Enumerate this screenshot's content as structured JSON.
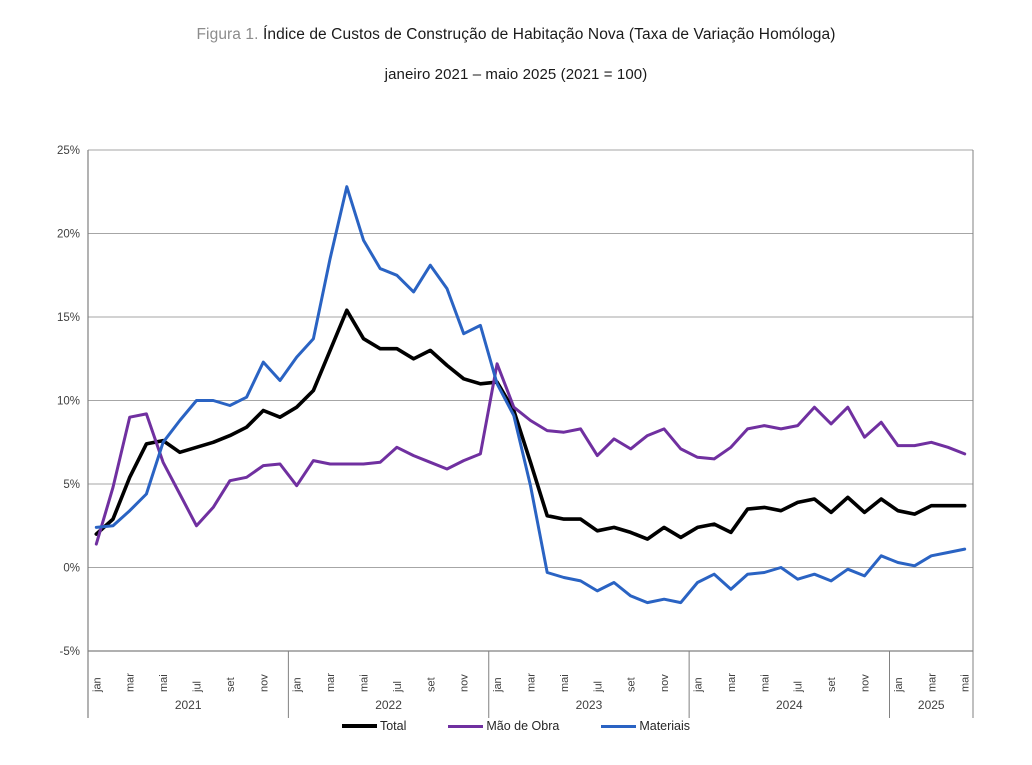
{
  "figure": {
    "title_prefix": "Figura 1.",
    "title": " Índice de Custos de Construção de Habitação Nova (Taxa de Variação Homóloga)",
    "subtitle": "janeiro 2021 – maio 2025 (2021 = 100)"
  },
  "colors": {
    "total": "#000000",
    "mao_de_obra": "#7030A0",
    "materiais": "#2A63C3",
    "gridline": "#A6A6A6",
    "axis": "#808080",
    "tick_text": "#404040",
    "title_prefix_gray": "#8C8C8C"
  },
  "chart_data": {
    "type": "line",
    "unit": "%",
    "ylim": [
      -5,
      25
    ],
    "grid": true,
    "legend_position": "bottom",
    "y_tick_labels": [
      "25%",
      "20%",
      "15%",
      "10%",
      "5%",
      "0%",
      "-5%"
    ],
    "y_tick_values": [
      25,
      20,
      15,
      10,
      5,
      0,
      -5
    ],
    "month_tick_labels": [
      "jan",
      "mar",
      "mai",
      "jul",
      "set",
      "nov"
    ],
    "years": [
      {
        "label": "2021",
        "months": 12
      },
      {
        "label": "2022",
        "months": 12
      },
      {
        "label": "2023",
        "months": 12
      },
      {
        "label": "2024",
        "months": 12
      },
      {
        "label": "2025",
        "months": 5
      }
    ],
    "series": [
      {
        "name": "Total",
        "color": "#000000",
        "width": 3.6,
        "values": [
          2.0,
          2.9,
          5.4,
          7.4,
          7.6,
          6.9,
          7.2,
          7.5,
          7.9,
          8.4,
          9.4,
          9.0,
          9.6,
          10.6,
          13.0,
          15.4,
          13.7,
          13.1,
          13.1,
          12.5,
          13.0,
          12.1,
          11.3,
          11.0,
          11.1,
          9.4,
          6.3,
          3.1,
          2.9,
          2.9,
          2.2,
          2.4,
          2.1,
          1.7,
          2.4,
          1.8,
          2.4,
          2.6,
          2.1,
          3.5,
          3.6,
          3.4,
          3.9,
          4.1,
          3.3,
          4.2,
          3.3,
          4.1,
          3.4,
          3.2,
          3.7,
          3.7,
          3.7
        ]
      },
      {
        "name": "Mão de Obra",
        "color": "#7030A0",
        "width": 3.0,
        "values": [
          1.4,
          4.8,
          9.0,
          9.2,
          6.3,
          4.4,
          2.5,
          3.6,
          5.2,
          5.4,
          6.1,
          6.2,
          4.9,
          6.4,
          6.2,
          6.2,
          6.2,
          6.3,
          7.2,
          6.7,
          6.3,
          5.9,
          6.4,
          6.8,
          12.2,
          9.6,
          8.8,
          8.2,
          8.1,
          8.3,
          6.7,
          7.7,
          7.1,
          7.9,
          8.3,
          7.1,
          6.6,
          6.5,
          7.2,
          8.3,
          8.5,
          8.3,
          8.5,
          9.6,
          8.6,
          9.6,
          7.8,
          8.7,
          7.3,
          7.3,
          7.5,
          7.2,
          6.8
        ]
      },
      {
        "name": "Materiais",
        "color": "#2A63C3",
        "width": 3.0,
        "values": [
          2.4,
          2.5,
          3.4,
          4.4,
          7.5,
          8.8,
          10.0,
          10.0,
          9.7,
          10.2,
          12.3,
          11.2,
          12.6,
          13.7,
          18.5,
          22.8,
          19.6,
          17.9,
          17.5,
          16.5,
          18.1,
          16.7,
          14.0,
          14.5,
          11.0,
          9.1,
          4.9,
          -0.3,
          -0.6,
          -0.8,
          -1.4,
          -0.9,
          -1.7,
          -2.1,
          -1.9,
          -2.1,
          -0.9,
          -0.4,
          -1.3,
          -0.4,
          -0.3,
          0.0,
          -0.7,
          -0.4,
          -0.8,
          -0.1,
          -0.5,
          0.7,
          0.3,
          0.1,
          0.7,
          0.9,
          1.1
        ]
      }
    ]
  }
}
